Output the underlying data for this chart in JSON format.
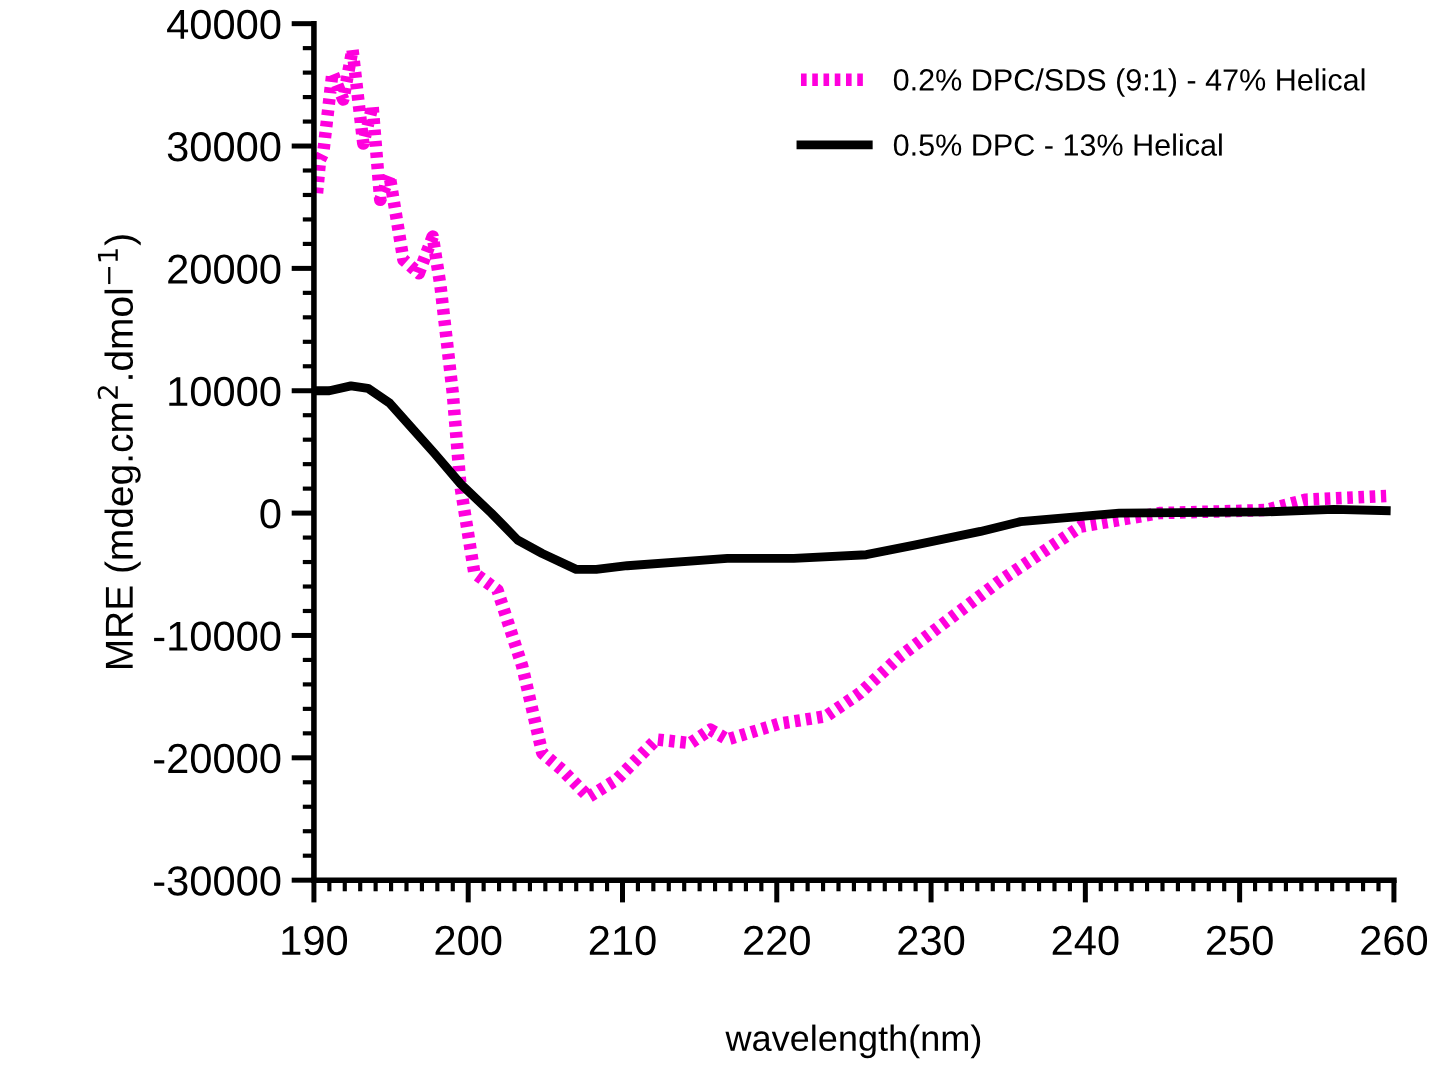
{
  "chart_data": {
    "type": "line",
    "xlabel": "wavelength(nm)",
    "ylabel": "MRE (mdeg.cm$^{2}$.dmol$^{−1}$)",
    "xlim": [
      190,
      260
    ],
    "xticks": [
      190,
      200,
      210,
      220,
      230,
      240,
      250,
      260
    ],
    "ylim": [
      -30000,
      40000
    ],
    "yticks": [
      -30000,
      -20000,
      -10000,
      0,
      10000,
      20000,
      30000,
      40000
    ],
    "grid": false,
    "legend": "top right",
    "marker": "none",
    "series": [
      {
        "name": "0.2% DPC/SDS (9:1) - 47% Helical",
        "color": "#ff00dd",
        "line_style": "dotted",
        "x": [
          190.2,
          190.4,
          190.6,
          191.2,
          191.9,
          192.5,
          193.2,
          193.8,
          194.3,
          194.9,
          195.8,
          196.8,
          197.7,
          198.2,
          199.0,
          199.5,
          200.4,
          201.9,
          203.5,
          204.8,
          206.1,
          207.8,
          209.6,
          212.2,
          214.4,
          215.7,
          216.8,
          220.2,
          223.2,
          225.4,
          228.0,
          234.5,
          239.7,
          244.8,
          251.7,
          254.3,
          259.5
        ],
        "values": [
          26150,
          28900,
          29400,
          36000,
          33800,
          37900,
          30200,
          33300,
          25600,
          27600,
          20700,
          19600,
          22600,
          18600,
          9800,
          2200,
          -4900,
          -6300,
          -12500,
          -19600,
          -21000,
          -23200,
          -21800,
          -18500,
          -18800,
          -17700,
          -18500,
          -17200,
          -16600,
          -14700,
          -11700,
          -5500,
          -1100,
          0,
          250,
          1100,
          1400
        ]
      },
      {
        "name": "0.5% DPC - 13% Helical",
        "color": "#000000",
        "line_style": "solid",
        "x": [
          190.1,
          191.0,
          192.4,
          193.5,
          194.9,
          197.8,
          199.5,
          201.5,
          203.2,
          204.8,
          207.0,
          208.3,
          210.3,
          216.8,
          221.1,
          225.8,
          229.0,
          233.2,
          235.8,
          242.2,
          251.7,
          256.1,
          259.5
        ],
        "values": [
          10000,
          10000,
          10400,
          10200,
          9000,
          4900,
          2400,
          0,
          -2200,
          -3300,
          -4600,
          -4600,
          -4300,
          -3700,
          -3700,
          -3400,
          -2600,
          -1500,
          -700,
          0,
          100,
          300,
          200
        ]
      }
    ]
  }
}
